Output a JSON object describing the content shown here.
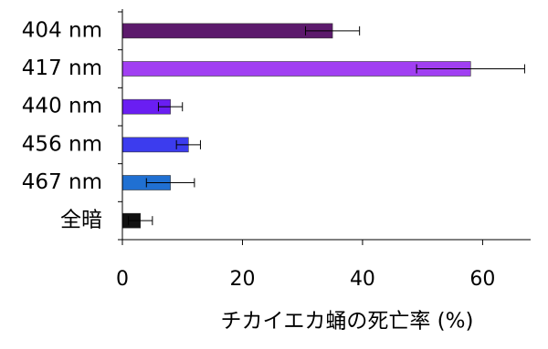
{
  "chart_data": {
    "type": "bar",
    "orientation": "horizontal",
    "x_label": "チカイエカ蛹の死亡率 (%)",
    "categories": [
      "404 nm",
      "417 nm",
      "440 nm",
      "456 nm",
      "467 nm",
      "全暗"
    ],
    "values": [
      35,
      58,
      8,
      11,
      8,
      3
    ],
    "errors": [
      4.5,
      9,
      2,
      2,
      4,
      2
    ],
    "colors": [
      "#5c1a6c",
      "#a13ff2",
      "#6a1ef2",
      "#3c3cee",
      "#2070d2",
      "#111111"
    ],
    "xlim": [
      0,
      68
    ],
    "xticks": [
      0,
      20,
      40,
      60
    ]
  }
}
